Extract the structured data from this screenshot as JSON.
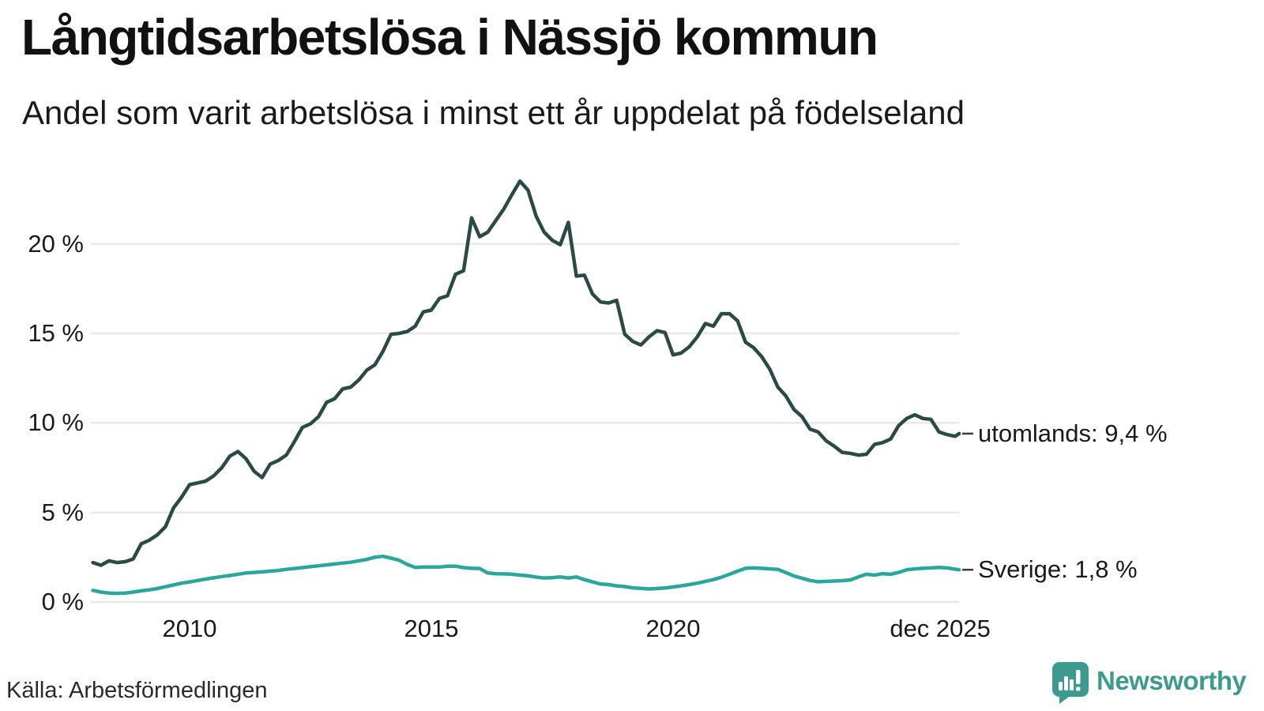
{
  "header": {
    "title": "Långtidsarbetslösa i Nässjö kommun",
    "subtitle": "Andel som varit arbetslösa i minst ett år uppdelat på födelseland"
  },
  "footer": {
    "source": "Källa: Arbetsförmedlingen",
    "brand": "Newsworthy"
  },
  "colors": {
    "utomlands_line": "#2b4a44",
    "sverige_line": "#2aa79a",
    "gridline": "#e8e8e8",
    "text": "#1a1a1a",
    "logo_teal": "#3c9b8e",
    "label_dash": "#3a3a3a",
    "background": "#ffffff"
  },
  "chart_data": {
    "type": "line",
    "title": "Långtidsarbetslösa i Nässjö kommun",
    "subtitle": "Andel som varit arbetslösa i minst ett år uppdelat på födelseland",
    "unit": "%",
    "x_start": "2008-01",
    "x_end": "2025-12",
    "step_months": 2,
    "grid": "horizontal",
    "legend_position": "end-of-line",
    "ylim": [
      0,
      24.5
    ],
    "y_ticks": [
      {
        "label": "0 %",
        "value": 0
      },
      {
        "label": "5 %",
        "value": 5
      },
      {
        "label": "10 %",
        "value": 10
      },
      {
        "label": "15 %",
        "value": 15
      },
      {
        "label": "20 %",
        "value": 20
      }
    ],
    "x_ticks": [
      {
        "label": "2010",
        "year": 2010
      },
      {
        "label": "2015",
        "year": 2015
      },
      {
        "label": "2020",
        "year": 2020
      },
      {
        "label": "dec 2025",
        "year": 2025.917,
        "end_tick": true
      }
    ],
    "series": [
      {
        "name": "utomlands",
        "end_label": "utomlands: 9,4 %",
        "last_value": "9,4 %",
        "color": "#2b4a44",
        "values": [
          2.2,
          2.05,
          2.3,
          2.2,
          2.25,
          2.4,
          3.25,
          3.45,
          3.75,
          4.2,
          5.25,
          5.85,
          6.55,
          6.65,
          6.75,
          7.05,
          7.5,
          8.15,
          8.4,
          8.0,
          7.3,
          6.95,
          7.7,
          7.9,
          8.2,
          8.95,
          9.75,
          9.95,
          10.35,
          11.15,
          11.35,
          11.9,
          12.0,
          12.4,
          12.95,
          13.25,
          14.0,
          14.95,
          15.0,
          15.1,
          15.4,
          16.2,
          16.3,
          16.95,
          17.1,
          18.3,
          18.5,
          21.45,
          20.4,
          20.65,
          21.3,
          21.95,
          22.75,
          23.5,
          23.0,
          21.55,
          20.65,
          20.2,
          19.95,
          21.2,
          18.2,
          18.25,
          17.2,
          16.75,
          16.7,
          16.85,
          14.95,
          14.55,
          14.35,
          14.8,
          15.15,
          15.05,
          13.8,
          13.9,
          14.25,
          14.8,
          15.55,
          15.4,
          16.1,
          16.1,
          15.7,
          14.5,
          14.2,
          13.7,
          13.0,
          12.0,
          11.5,
          10.75,
          10.35,
          9.65,
          9.5,
          9.0,
          8.7,
          8.35,
          8.3,
          8.2,
          8.25,
          8.8,
          8.9,
          9.1,
          9.85,
          10.25,
          10.45,
          10.25,
          10.2,
          9.5,
          9.35,
          9.25,
          9.4
        ]
      },
      {
        "name": "Sverige",
        "end_label": "Sverige: 1,8 %",
        "last_value": "1,8 %",
        "color": "#2aa79a",
        "values": [
          0.65,
          0.55,
          0.5,
          0.48,
          0.5,
          0.55,
          0.62,
          0.68,
          0.75,
          0.85,
          0.95,
          1.05,
          1.12,
          1.2,
          1.28,
          1.35,
          1.42,
          1.48,
          1.55,
          1.62,
          1.65,
          1.68,
          1.72,
          1.76,
          1.82,
          1.87,
          1.92,
          1.97,
          2.02,
          2.07,
          2.12,
          2.17,
          2.22,
          2.3,
          2.38,
          2.5,
          2.55,
          2.45,
          2.33,
          2.1,
          1.93,
          1.95,
          1.95,
          1.95,
          2.0,
          2.0,
          1.92,
          1.88,
          1.87,
          1.62,
          1.58,
          1.57,
          1.55,
          1.5,
          1.46,
          1.39,
          1.34,
          1.36,
          1.4,
          1.34,
          1.4,
          1.25,
          1.12,
          1.0,
          0.97,
          0.9,
          0.86,
          0.79,
          0.76,
          0.73,
          0.75,
          0.78,
          0.84,
          0.9,
          0.97,
          1.05,
          1.15,
          1.25,
          1.38,
          1.55,
          1.72,
          1.88,
          1.9,
          1.88,
          1.85,
          1.82,
          1.64,
          1.45,
          1.33,
          1.2,
          1.13,
          1.15,
          1.17,
          1.19,
          1.23,
          1.4,
          1.55,
          1.5,
          1.58,
          1.55,
          1.65,
          1.8,
          1.85,
          1.88,
          1.9,
          1.93,
          1.9,
          1.83,
          1.8
        ]
      }
    ]
  }
}
